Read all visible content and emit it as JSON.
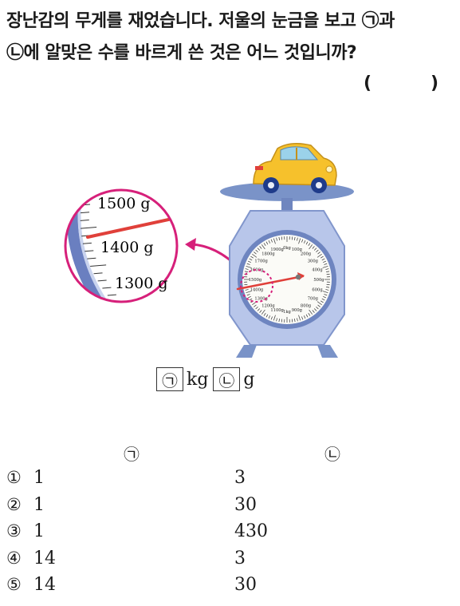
{
  "question": {
    "line1": "장난감의 무게를 재었습니다. 저울의 눈금을 보고 ㉠과",
    "line2": "㉡에 알맞은 수를 바르게 쓴 것은 어느 것입니까?",
    "paren_open": "(",
    "paren_close": ")"
  },
  "figure": {
    "zoom_labels": [
      "1500 g",
      "1400 g",
      "1300 g"
    ],
    "scale_labels": [
      "1900g",
      "0kg",
      "100g",
      "1800g",
      "200g",
      "1700g",
      "300g",
      "1600g",
      "400g",
      "1500g",
      "500g",
      "1400g",
      "600g",
      "1300g",
      "700g",
      "1200g",
      "800g",
      "1100g",
      "1kg",
      "900g"
    ]
  },
  "answer_format": {
    "box1": "㉠",
    "unit1": "kg",
    "box2": "㉡",
    "unit2": "g"
  },
  "choices": {
    "header_a": "㉠",
    "header_b": "㉡",
    "items": [
      {
        "num": "①",
        "a": "1",
        "b": "3"
      },
      {
        "num": "②",
        "a": "1",
        "b": "30"
      },
      {
        "num": "③",
        "a": "1",
        "b": "430"
      },
      {
        "num": "④",
        "a": "14",
        "b": "3"
      },
      {
        "num": "⑤",
        "a": "14",
        "b": "30"
      }
    ]
  },
  "colors": {
    "magenta": "#d6207a",
    "scale_blue": "#8fa3d6",
    "scale_dark": "#5a6fb0",
    "dial_face": "#fbfbf7",
    "needle": "#e0403a",
    "car_yellow": "#f6c12c"
  }
}
